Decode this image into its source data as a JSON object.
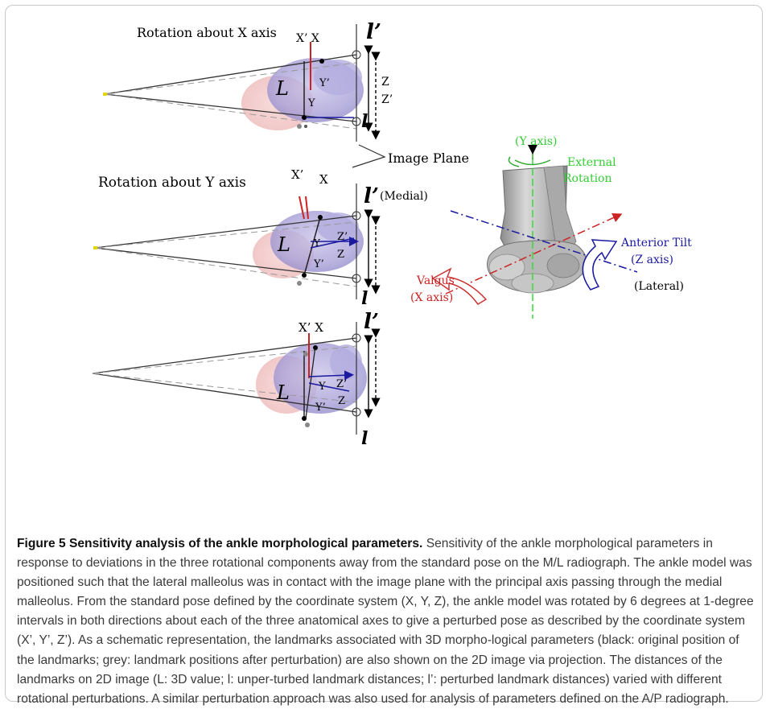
{
  "figure": {
    "panels": {
      "x": {
        "title": "Rotation about X axis",
        "top_label": "X’ X",
        "near": "Y’",
        "under": "Y",
        "side1": "Z",
        "side2": "Z’"
      },
      "y": {
        "title": "Rotation about Y axis",
        "top_label_a": "X’",
        "top_label_b": "X",
        "medial": "(Medial)",
        "near1": "Y",
        "near2": "Y’",
        "side1": "Z’",
        "side2": "Z"
      },
      "z": {
        "top_label": "X’ X",
        "near1": "Y",
        "near2": "Y’",
        "side1": "Z’",
        "side2": "Z"
      }
    },
    "big_L": "L",
    "l_prime": "l’",
    "l": "l",
    "image_plane": "Image Plane",
    "ankle": {
      "y_axis": "(Y axis)",
      "external_rotation_1": "External",
      "external_rotation_2": "Rotation",
      "anterior_tilt": "Anterior Tilt",
      "z_axis": "(Z axis)",
      "lateral": "(Lateral)",
      "valgus": "Valgus",
      "x_axis": "(X axis)"
    },
    "colors": {
      "green": "#33dd33",
      "red": "#cc2222",
      "blue": "#1a1aa0"
    }
  },
  "caption": {
    "title": "Figure 5 Sensitivity analysis of the ankle morphological parameters.",
    "body": " Sensitivity of the ankle morphological parameters in response to deviations in the three rotational components away from the standard pose on the M/L radiograph. The ankle model was positioned such that the lateral malleolus was in contact with the image plane with the principal axis passing through the medial malleolus. From the standard pose defined by the coordinate system (X, Y, Z), the ankle model was rotated by 6 degrees at 1-degree intervals in both directions about each of the three anatomical axes to give a perturbed pose as described by the coordinate system (X’, Y’, Z’). As a schematic representation, the landmarks associated with 3D morpho-logical parameters (black: original position of the landmarks; grey: landmark positions after perturbation) are also shown on the 2D image via projection. The distances of the landmarks on 2D image (L: 3D value; l: unper-turbed landmark distances; l’: perturbed landmark distances) varied with different rotational perturbations. A similar perturbation approach was also used for analysis of parameters defined on the A/P radiograph."
  }
}
